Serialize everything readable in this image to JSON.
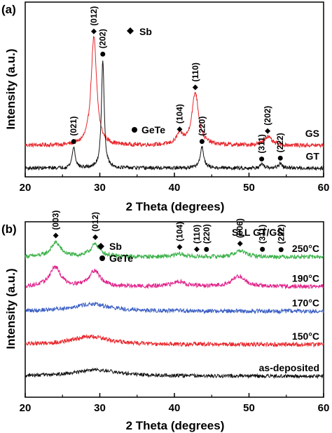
{
  "chart_data": [
    {
      "panel": "(a)",
      "type": "line",
      "xlabel": "2 Theta (degrees)",
      "ylabel": "Intensity (a.u.)",
      "xlim": [
        20,
        60
      ],
      "xticks": [
        "20",
        "30",
        "40",
        "50",
        "60"
      ],
      "legend": [
        {
          "marker": "diamond",
          "label": "Sb"
        },
        {
          "marker": "circle",
          "label": "GeTe"
        }
      ],
      "series": [
        {
          "name": "GS",
          "color": "#e8262b",
          "baseline": 0.18,
          "noise": 0.012,
          "peaks": [
            {
              "x": 29.2,
              "h": 0.62,
              "w": 0.45,
              "hkl": "(012)",
              "marker": "diamond"
            },
            {
              "x": 40.7,
              "h": 0.06,
              "w": 0.5,
              "hkl": "(104)",
              "marker": "diamond"
            },
            {
              "x": 42.8,
              "h": 0.3,
              "w": 0.55,
              "hkl": "(110)",
              "marker": "diamond"
            },
            {
              "x": 52.5,
              "h": 0.05,
              "w": 0.6,
              "hkl": "(202)",
              "marker": "diamond"
            }
          ]
        },
        {
          "name": "GT",
          "color": "#111111",
          "baseline": 0.05,
          "noise": 0.01,
          "peaks": [
            {
              "x": 26.5,
              "h": 0.12,
              "w": 0.25,
              "hkl": "(021)",
              "marker": "circle"
            },
            {
              "x": 30.4,
              "h": 0.62,
              "w": 0.22,
              "hkl": "(202)",
              "marker": "circle"
            },
            {
              "x": 43.7,
              "h": 0.12,
              "w": 0.3,
              "hkl": "(220)",
              "marker": "circle"
            },
            {
              "x": 51.7,
              "h": 0.02,
              "w": 0.3,
              "hkl": "(311)",
              "marker": "circle"
            },
            {
              "x": 54.2,
              "h": 0.025,
              "w": 0.3,
              "hkl": "(222)",
              "marker": "circle"
            }
          ]
        }
      ]
    },
    {
      "panel": "(b)",
      "type": "line",
      "title": "SLL GT/GS",
      "xlabel": "2 Theta (degrees)",
      "ylabel": "Intensity (a.u.)",
      "xlim": [
        20,
        60
      ],
      "xticks": [
        "20",
        "30",
        "40",
        "50",
        "60"
      ],
      "legend": [
        {
          "marker": "diamond",
          "label": "Sb"
        },
        {
          "marker": "circle",
          "label": "GeTe"
        }
      ],
      "annotations": [
        {
          "x": 24.1,
          "hkl": "(003)",
          "marker": "diamond"
        },
        {
          "x": 29.4,
          "hkl": "(012)",
          "marker": "diamond"
        },
        {
          "x": 40.7,
          "hkl": "(104)",
          "marker": "diamond"
        },
        {
          "x": 43.0,
          "hkl": "(110)",
          "marker": "diamond"
        },
        {
          "x": 44.3,
          "hkl": "(220)",
          "marker": "circle"
        },
        {
          "x": 48.8,
          "hkl": "(006)",
          "marker": "diamond"
        },
        {
          "x": 51.8,
          "hkl": "(311)",
          "marker": "circle"
        },
        {
          "x": 54.3,
          "hkl": "(222)",
          "marker": "circle"
        }
      ],
      "series": [
        {
          "name": "250°C",
          "color": "#3cb24a",
          "baseline": 0.8,
          "noise": 0.012,
          "peaks": [
            {
              "x": 24.1,
              "h": 0.08,
              "w": 0.8
            },
            {
              "x": 29.4,
              "h": 0.07,
              "w": 0.8
            },
            {
              "x": 40.7,
              "h": 0.015,
              "w": 0.8
            },
            {
              "x": 48.8,
              "h": 0.035,
              "w": 0.9
            }
          ]
        },
        {
          "name": "190°C",
          "color": "#e0218a",
          "baseline": 0.63,
          "noise": 0.012,
          "peaks": [
            {
              "x": 24.0,
              "h": 0.11,
              "w": 0.9
            },
            {
              "x": 29.3,
              "h": 0.09,
              "w": 0.9
            },
            {
              "x": 40.6,
              "h": 0.03,
              "w": 1.0
            },
            {
              "x": 48.6,
              "h": 0.06,
              "w": 1.1
            }
          ]
        },
        {
          "name": "170°C",
          "color": "#3b5fc4",
          "baseline": 0.49,
          "noise": 0.012,
          "peaks": [
            {
              "x": 28.8,
              "h": 0.04,
              "w": 3.2
            }
          ]
        },
        {
          "name": "150°C",
          "color": "#e8262b",
          "baseline": 0.3,
          "noise": 0.012,
          "peaks": [
            {
              "x": 28.7,
              "h": 0.045,
              "w": 3.0
            }
          ]
        },
        {
          "name": "as-deposited",
          "color": "#111111",
          "baseline": 0.12,
          "noise": 0.01,
          "peaks": [
            {
              "x": 29.5,
              "h": 0.035,
              "w": 3.5
            }
          ]
        }
      ]
    }
  ]
}
